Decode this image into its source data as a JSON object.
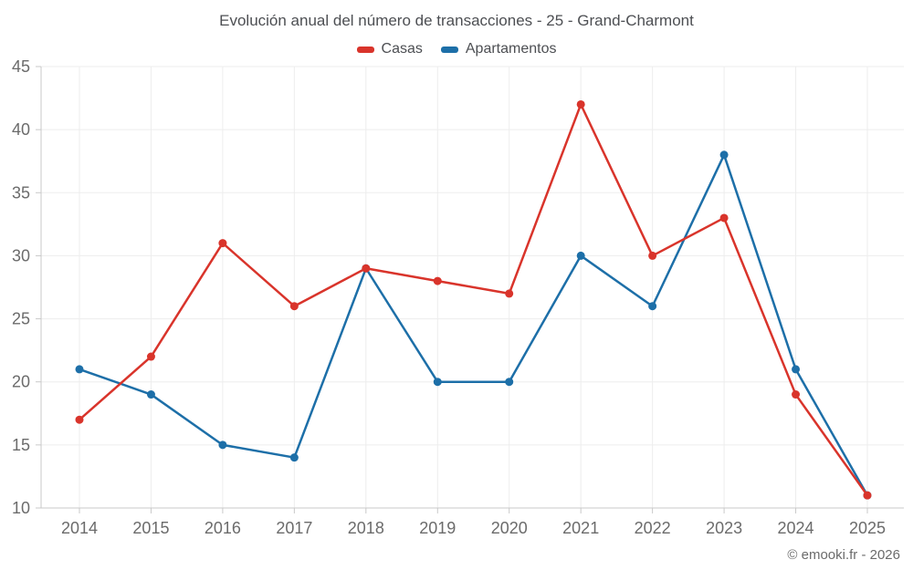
{
  "chart_data": {
    "type": "line",
    "title": "Evolución anual del número de transacciones - 25 - Grand-Charmont",
    "x": [
      2014,
      2015,
      2016,
      2017,
      2018,
      2019,
      2020,
      2021,
      2022,
      2023,
      2024,
      2025
    ],
    "series": [
      {
        "name": "Casas",
        "color": "#d9342b",
        "values": [
          17,
          22,
          31,
          26,
          29,
          28,
          27,
          42,
          30,
          33,
          19,
          11
        ]
      },
      {
        "name": "Apartamentos",
        "color": "#1d6fa8",
        "values": [
          21,
          19,
          15,
          14,
          29,
          20,
          20,
          30,
          26,
          38,
          21,
          11
        ]
      }
    ],
    "xlabel": "",
    "ylabel": "",
    "ylim": [
      10,
      45
    ],
    "yticks": [
      10,
      15,
      20,
      25,
      30,
      35,
      40,
      45
    ],
    "grid": true,
    "legend_position": "top"
  },
  "footer": {
    "text": "© emooki.fr - 2026"
  },
  "colors": {
    "casas": "#d9342b",
    "apartamentos": "#1d6fa8",
    "grid_line": "#ededed",
    "axis_line": "#c9c9c9",
    "tick_label": "#6b6b6b",
    "title_text": "#4d4f53",
    "footer_text": "#6b6b6b",
    "background": "#ffffff"
  }
}
